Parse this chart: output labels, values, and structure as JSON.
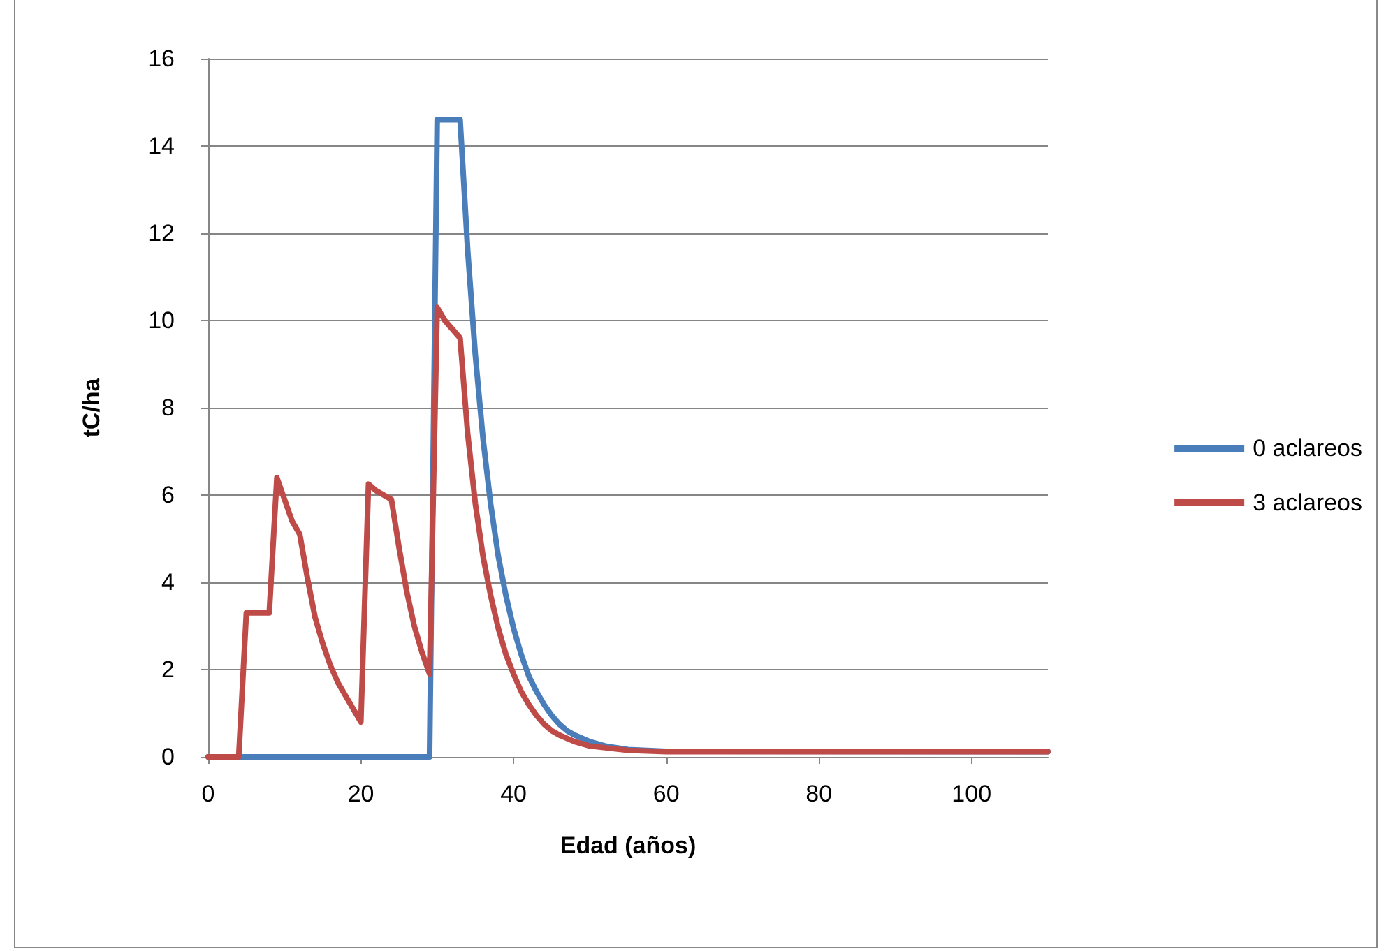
{
  "chart_data": {
    "type": "line",
    "xlabel": "Edad (años)",
    "ylabel": "tC/ha",
    "xlim": [
      0,
      110
    ],
    "xticks": [
      0,
      20,
      40,
      60,
      80,
      100
    ],
    "ylim": [
      0,
      16
    ],
    "yticks": [
      0,
      2,
      4,
      6,
      8,
      10,
      12,
      14,
      16
    ],
    "grid": "y",
    "legend": "right",
    "marker": "none",
    "line_style": "solid",
    "series": [
      {
        "name": "0 aclareos",
        "color": "#4a7ebb",
        "x": [
          0,
          29,
          30,
          33,
          34,
          35,
          36,
          37,
          38,
          39,
          40,
          41,
          42,
          43,
          44,
          45,
          46,
          47,
          48,
          50,
          52,
          55,
          60,
          110
        ],
        "values": [
          0,
          0,
          14.6,
          14.6,
          11.6,
          9.2,
          7.3,
          5.8,
          4.6,
          3.7,
          2.95,
          2.35,
          1.85,
          1.5,
          1.2,
          0.95,
          0.75,
          0.6,
          0.5,
          0.35,
          0.25,
          0.17,
          0.13,
          0.12
        ]
      },
      {
        "name": "3 aclareos",
        "color": "#be4b48",
        "x": [
          0,
          4,
          5,
          8,
          9,
          10,
          11,
          12,
          13,
          14,
          15,
          16,
          17,
          18,
          19,
          20,
          21,
          22,
          23,
          24,
          25,
          26,
          27,
          28,
          29,
          30,
          31,
          32,
          33,
          34,
          35,
          36,
          37,
          38,
          39,
          40,
          41,
          42,
          43,
          44,
          45,
          46,
          48,
          50,
          55,
          60,
          110
        ],
        "values": [
          0,
          0,
          3.3,
          3.3,
          6.4,
          5.9,
          5.4,
          5.1,
          4.1,
          3.2,
          2.6,
          2.1,
          1.7,
          1.4,
          1.1,
          0.8,
          6.25,
          6.1,
          6.0,
          5.9,
          4.8,
          3.8,
          3.0,
          2.4,
          1.9,
          10.3,
          10.0,
          9.8,
          9.6,
          7.4,
          5.8,
          4.6,
          3.7,
          2.95,
          2.35,
          1.9,
          1.5,
          1.2,
          0.95,
          0.75,
          0.6,
          0.5,
          0.35,
          0.25,
          0.15,
          0.12,
          0.12
        ]
      }
    ]
  }
}
